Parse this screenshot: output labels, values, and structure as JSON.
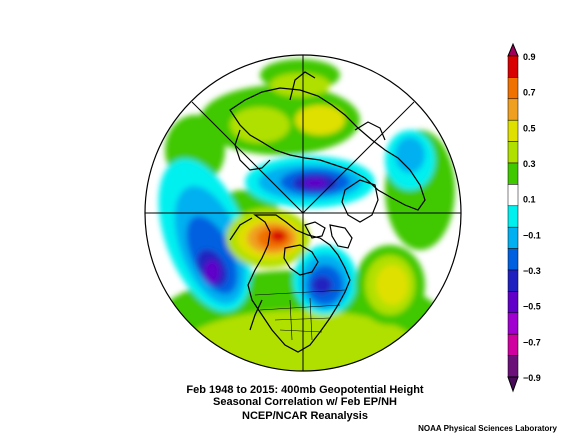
{
  "caption": {
    "line1": "Feb 1948 to 2015: 400mb Geopotential Height",
    "line2": "Seasonal Correlation w/ Feb EP/NH",
    "line3": "NCEP/NCAR Reanalysis"
  },
  "credit": "NOAA Physical Sciences Laboratory",
  "colorbar": {
    "labels": [
      "0.9",
      "0.7",
      "0.5",
      "0.3",
      "0.1",
      "−0.1",
      "−0.3",
      "−0.5",
      "−0.7",
      "−0.9"
    ],
    "colors": [
      "#d80000",
      "#f07000",
      "#f0a020",
      "#e0e000",
      "#b0e000",
      "#40c800",
      "#ffffff",
      "#00f0f0",
      "#00b0f0",
      "#0060e0",
      "#2020c0",
      "#6000c8",
      "#a000d0",
      "#d000a0",
      "#6a1078"
    ]
  },
  "map_data": {
    "projection": "north-polar-stereographic",
    "field": "correlation",
    "anomaly_centers": [
      {
        "region": "Northwest North America",
        "sign": "positive",
        "strength": 0.75
      },
      {
        "region": "Eastern North America / Hudson Bay",
        "sign": "negative",
        "strength": -0.5
      },
      {
        "region": "North Pacific",
        "sign": "negative",
        "strength": -0.5
      },
      {
        "region": "Arctic / Siberia",
        "sign": "negative",
        "strength": -0.5
      },
      {
        "region": "Central Atlantic",
        "sign": "positive",
        "strength": 0.4
      },
      {
        "region": "Northern Europe",
        "sign": "positive",
        "strength": 0.3
      },
      {
        "region": "Eastern Asia",
        "sign": "negative",
        "strength": -0.2
      }
    ]
  }
}
